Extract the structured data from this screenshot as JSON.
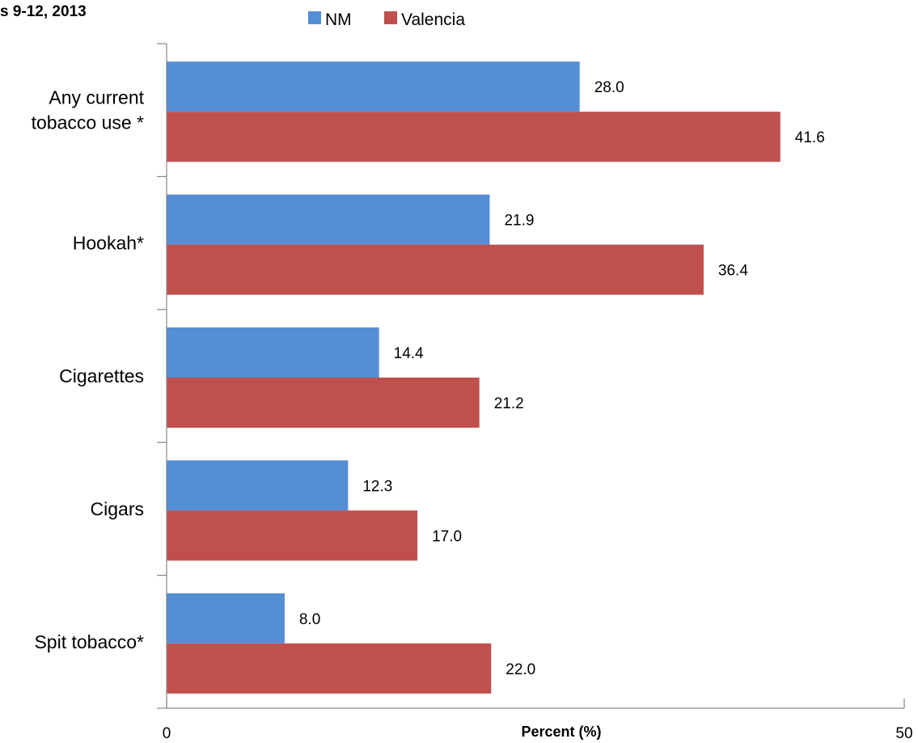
{
  "chart_data": {
    "type": "bar",
    "orientation": "horizontal",
    "title": "s 9-12, 2013",
    "xlabel": "Percent (%)",
    "ylabel": "",
    "xlim": [
      0,
      50
    ],
    "x_ticks": [
      "0",
      "50"
    ],
    "categories": [
      "Any current tobacco use *",
      "Hookah*",
      "Cigarettes",
      "Cigars",
      "Spit tobacco*"
    ],
    "category_lines": [
      [
        "Any current",
        "tobacco use *"
      ],
      [
        "Hookah*"
      ],
      [
        "Cigarettes"
      ],
      [
        "Cigars"
      ],
      [
        "Spit tobacco*"
      ]
    ],
    "series": [
      {
        "name": "NM",
        "color": "#558ED5",
        "values": [
          28.0,
          21.9,
          14.4,
          12.3,
          8.0
        ],
        "labels": [
          "28.0",
          "21.9",
          "14.4",
          "12.3",
          "8.0"
        ]
      },
      {
        "name": "Valencia",
        "color": "#C0504D",
        "values": [
          41.6,
          36.4,
          21.2,
          17.0,
          22.0
        ],
        "labels": [
          "41.6",
          "36.4",
          "21.2",
          "17.0",
          "22.0"
        ]
      }
    ],
    "legend_position": "top",
    "grid": false
  }
}
